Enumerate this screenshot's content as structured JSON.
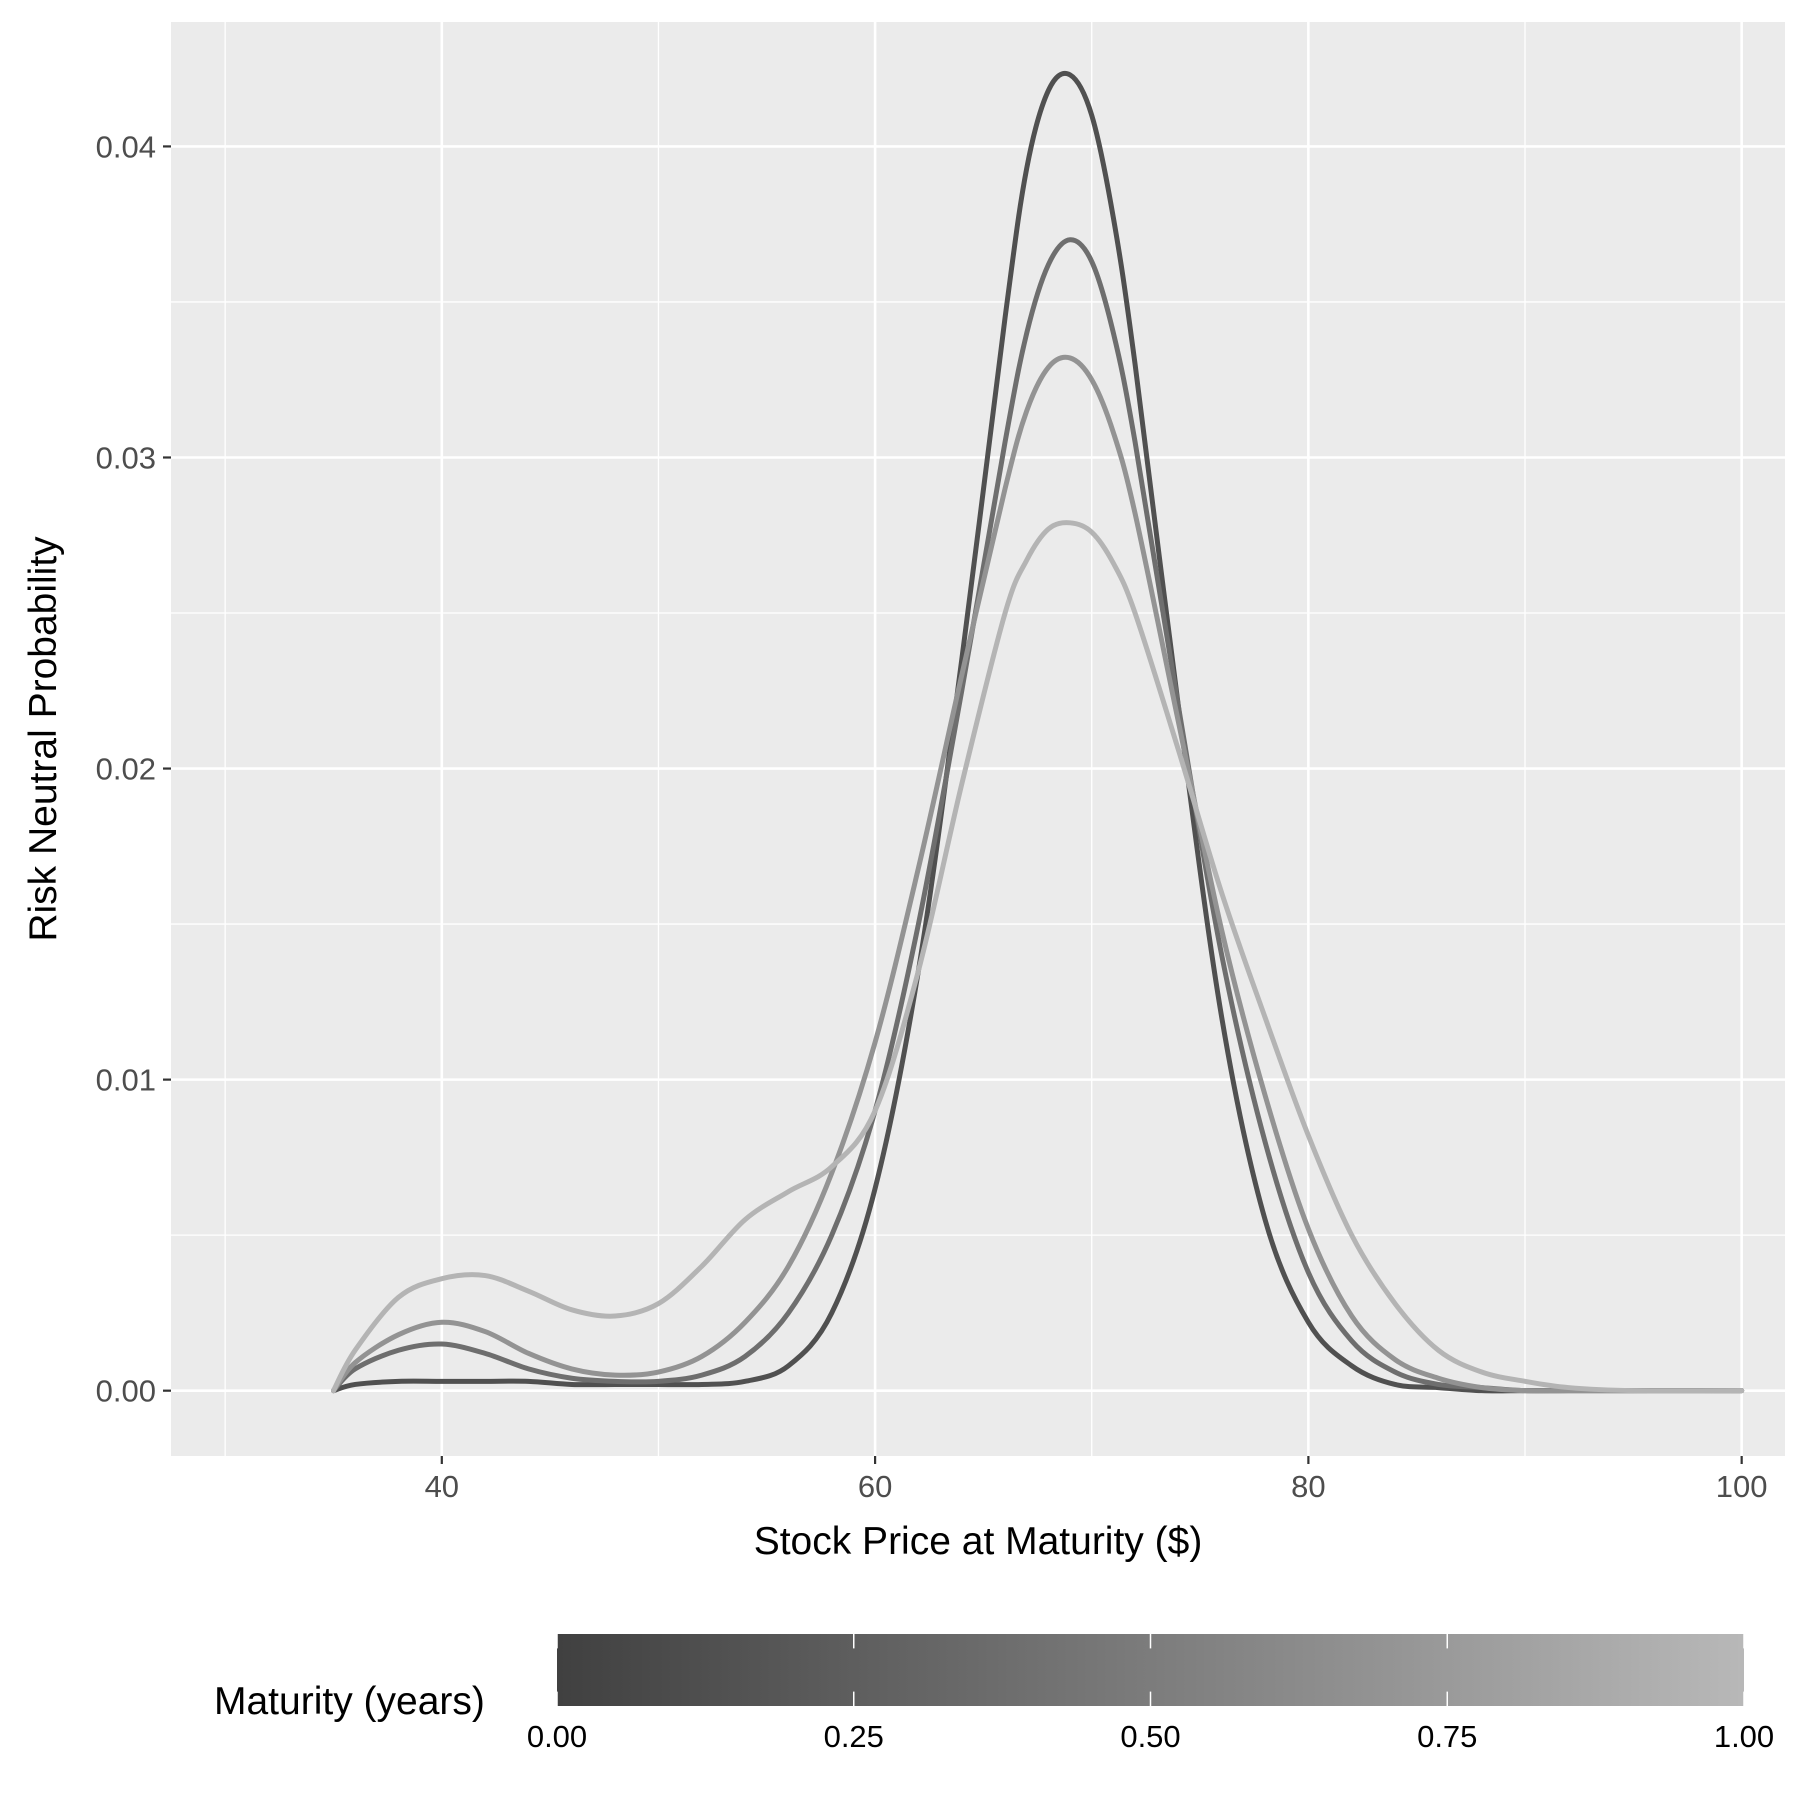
{
  "chart_data": {
    "type": "line",
    "xlabel": "Stock Price at Maturity ($)",
    "ylabel": "Risk Neutral Probability",
    "xlim": [
      27.5,
      102
    ],
    "ylim": [
      -0.0021,
      0.044
    ],
    "x_ticks": [
      40,
      60,
      80,
      100
    ],
    "x_minor_ticks": [
      30,
      50,
      70,
      90
    ],
    "y_ticks": [
      0.0,
      0.01,
      0.02,
      0.03,
      0.04
    ],
    "y_tick_labels": [
      "0.00",
      "0.01",
      "0.02",
      "0.03",
      "0.04"
    ],
    "grid": true,
    "x": [
      35,
      36,
      38,
      40,
      42,
      44,
      46,
      48,
      50,
      52,
      54,
      56,
      58,
      60,
      62,
      64,
      66,
      67,
      68,
      69,
      70,
      71,
      72,
      74,
      76,
      78,
      80,
      82,
      84,
      86,
      88,
      90,
      92,
      95,
      100
    ],
    "series": [
      {
        "maturity": 0.1,
        "color": "#505050",
        "values": [
          0.0,
          0.0002,
          0.0003,
          0.0003,
          0.0003,
          0.0003,
          0.0002,
          0.0002,
          0.0002,
          0.0002,
          0.0003,
          0.0008,
          0.0025,
          0.0065,
          0.0135,
          0.0235,
          0.0345,
          0.0393,
          0.0418,
          0.0423,
          0.041,
          0.0377,
          0.033,
          0.022,
          0.012,
          0.0055,
          0.0022,
          0.0008,
          0.0002,
          0.0001,
          0.0,
          0.0,
          0.0,
          0.0,
          0.0
        ]
      },
      {
        "maturity": 0.25,
        "color": "#6e6e6e",
        "values": [
          0.0,
          0.0007,
          0.0013,
          0.0015,
          0.0012,
          0.0007,
          0.0004,
          0.0003,
          0.0003,
          0.0005,
          0.0011,
          0.0025,
          0.005,
          0.009,
          0.015,
          0.0225,
          0.0305,
          0.034,
          0.0362,
          0.037,
          0.0363,
          0.034,
          0.0305,
          0.022,
          0.014,
          0.008,
          0.0038,
          0.0016,
          0.0006,
          0.0002,
          0.0001,
          0.0,
          0.0,
          0.0,
          0.0
        ]
      },
      {
        "maturity": 0.5,
        "color": "#939393",
        "values": [
          0.0,
          0.0009,
          0.0018,
          0.0022,
          0.0019,
          0.0012,
          0.0007,
          0.0005,
          0.0006,
          0.0011,
          0.0022,
          0.004,
          0.007,
          0.0112,
          0.0168,
          0.023,
          0.029,
          0.0315,
          0.0329,
          0.0332,
          0.0325,
          0.0308,
          0.0282,
          0.0215,
          0.0148,
          0.0095,
          0.0052,
          0.0024,
          0.001,
          0.0004,
          0.0001,
          0.0,
          0.0,
          0.0,
          0.0
        ]
      },
      {
        "maturity": 0.95,
        "color": "#b4b4b4",
        "values": [
          0.0,
          0.0013,
          0.003,
          0.0036,
          0.0037,
          0.0032,
          0.0026,
          0.0024,
          0.0028,
          0.004,
          0.0055,
          0.0064,
          0.0072,
          0.009,
          0.0135,
          0.0195,
          0.025,
          0.0267,
          0.0277,
          0.0279,
          0.0276,
          0.0266,
          0.025,
          0.0206,
          0.016,
          0.012,
          0.0082,
          0.005,
          0.0028,
          0.0013,
          0.0006,
          0.0003,
          0.0001,
          0.0,
          0.0
        ]
      }
    ],
    "legend": {
      "title": "Maturity (years)",
      "position": "bottom",
      "range": [
        0,
        1
      ],
      "ticks": [
        0.0,
        0.25,
        0.5,
        0.75,
        1.0
      ],
      "tick_labels": [
        "0.00",
        "0.25",
        "0.50",
        "0.75",
        "1.00"
      ],
      "color_low": "#404040",
      "color_high": "#b8b8b8"
    },
    "colors": {
      "panel_background": "#ebebeb",
      "grid": "#ffffff",
      "tick_text": "#4d4d4d"
    }
  }
}
